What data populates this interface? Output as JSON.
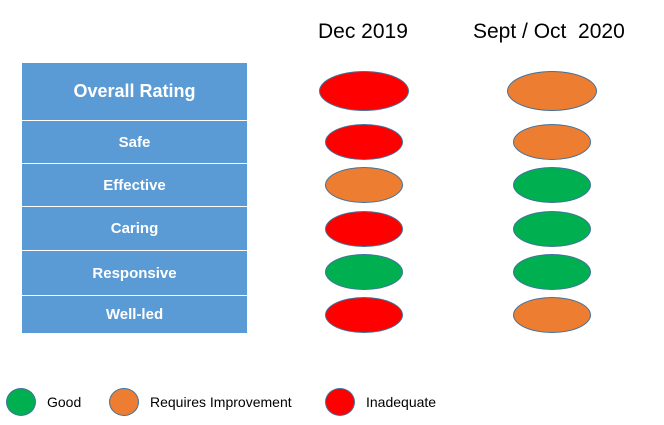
{
  "columns": [
    "Dec 2019",
    "Sept / Oct  2020"
  ],
  "ratings_colors": {
    "Good": "#00b050",
    "Requires Improvement": "#ed7d31",
    "Inadequate": "#ff0000"
  },
  "rows": [
    {
      "label": "Overall Rating",
      "dec_2019": "Inadequate",
      "sept_oct_2020": "Requires Improvement"
    },
    {
      "label": "Safe",
      "dec_2019": "Inadequate",
      "sept_oct_2020": "Requires Improvement"
    },
    {
      "label": "Effective",
      "dec_2019": "Requires Improvement",
      "sept_oct_2020": "Good"
    },
    {
      "label": "Caring",
      "dec_2019": "Inadequate",
      "sept_oct_2020": "Good"
    },
    {
      "label": "Responsive",
      "dec_2019": "Good",
      "sept_oct_2020": "Good"
    },
    {
      "label": "Well-led",
      "dec_2019": "Inadequate",
      "sept_oct_2020": "Requires Improvement"
    }
  ],
  "legend": [
    {
      "label": "Good",
      "color": "#00b050"
    },
    {
      "label": "Requires Improvement",
      "color": "#ed7d31"
    },
    {
      "label": "Inadequate",
      "color": "#ff0000"
    }
  ]
}
